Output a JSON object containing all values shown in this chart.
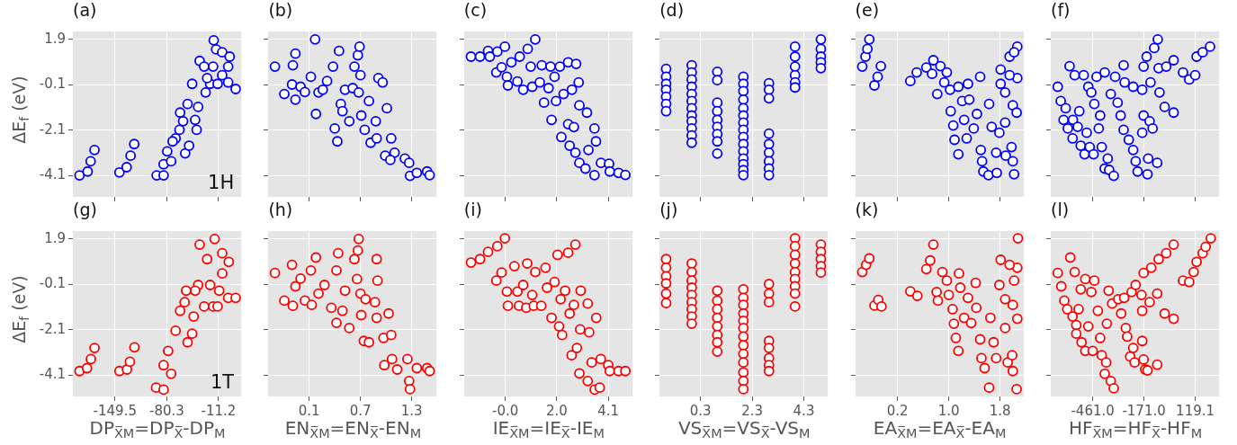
{
  "chart_data": [
    {
      "type": "scatter",
      "title": "(a)",
      "ylabel": "ΔE$_{f}$ (eV)",
      "annotations": [
        "1H"
      ],
      "xlim": [
        -205.7,
        19.2
      ],
      "xticks": [
        -149.5,
        -80.3,
        -11.2
      ],
      "ylim": [
        -5.05,
        2.25
      ],
      "yticks": [
        1.9,
        -0.1,
        -2.1,
        -4.1
      ],
      "grid": true,
      "marker": "circle",
      "tick_labels": "y",
      "series": [
        {
          "color": "#0000ff",
          "x": [
            -196.8,
            -186,
            -182,
            -176.8,
            -143.5,
            -133.9,
            -128.6,
            -123.8,
            -93.8,
            -84.5,
            -84.5,
            -79.7,
            -74.4,
            -68.5,
            -63.3,
            -55.7,
            -58.5,
            -50.5,
            -52.5,
            -42.4,
            -40.4,
            -46.4,
            -38.4,
            -36.4,
            -28.4,
            -30.4,
            -22.4,
            -18.4,
            -17.6,
            -14.4,
            -6.3,
            -6.3,
            1.7,
            3.7,
            1.7,
            11.7,
            -12.4,
            -26.4,
            -62.5,
            -72.5
          ],
          "values": [
            -4.1,
            -3.93,
            -3.48,
            -2.98,
            -3.97,
            -3.74,
            -3.23,
            -2.72,
            -4.1,
            -4.1,
            -3.61,
            -3.04,
            -3.48,
            -2.47,
            -2.09,
            -3.13,
            -1.71,
            -2.79,
            -0.95,
            -1.65,
            -2.09,
            -0.06,
            -1.08,
            0.95,
            -0.44,
            0.7,
            -0.06,
            0.7,
            1.86,
            1.46,
            1.33,
            0.32,
            0.7,
            1.14,
            0.0,
            -0.29,
            -0.06,
            0.19,
            -1.33,
            -2.6
          ]
        }
      ]
    },
    {
      "type": "scatter",
      "title": "(b)",
      "xlim": [
        -0.38,
        1.59
      ],
      "xticks": [
        0.1,
        0.7,
        1.3
      ],
      "ylim": [
        -5.05,
        2.25
      ],
      "yticks": [
        1.9,
        -0.1,
        -2.1,
        -4.1
      ],
      "grid": true,
      "marker": "circle",
      "tick_labels": false,
      "series": [
        {
          "color": "#0000ff",
          "x": [
            -0.3,
            -0.19,
            -0.1,
            -0.09,
            -0.06,
            -0.06,
            0.0,
            0.05,
            0.12,
            0.17,
            0.18,
            0.21,
            0.26,
            0.31,
            0.38,
            0.4,
            0.43,
            0.45,
            0.47,
            0.49,
            0.52,
            0.57,
            0.61,
            0.63,
            0.67,
            0.69,
            0.68,
            0.7,
            0.71,
            0.75,
            0.8,
            0.82,
            0.88,
            0.91,
            0.89,
            0.96,
            1.01,
            0.99,
            1.06,
            1.1,
            1.22,
            1.27,
            1.28,
            1.36,
            1.48,
            1.51,
            1.05
          ],
          "values": [
            0.7,
            -0.51,
            -0.09,
            0.76,
            1.27,
            -0.76,
            -0.19,
            -0.42,
            0.25,
            1.9,
            -1.39,
            -0.44,
            -0.32,
            0.06,
            0.7,
            -2.03,
            -2.6,
            1.39,
            -0.95,
            -1.27,
            -0.32,
            -1.71,
            -0.25,
            0.7,
            1.2,
            1.58,
            -0.44,
            0.32,
            -1.46,
            -2.09,
            -0.82,
            -2.66,
            -1.71,
            0.19,
            -2.47,
            0.0,
            -1.14,
            -3.23,
            -2.47,
            -3.1,
            -3.36,
            -3.55,
            -4.12,
            -3.99,
            -3.93,
            -4.09,
            -3.42
          ]
        }
      ]
    },
    {
      "type": "scatter",
      "title": "(c)",
      "xlim": [
        -1.69,
        5.02
      ],
      "xticks": [
        -0.05,
        2.0,
        4.05
      ],
      "ylim": [
        -5.05,
        2.25
      ],
      "yticks": [
        1.9,
        -0.1,
        -2.1,
        -4.1
      ],
      "grid": true,
      "marker": "circle",
      "tick_labels": false,
      "series": [
        {
          "color": "#0000ff",
          "x": [
            -1.42,
            -1.06,
            -0.74,
            -0.67,
            -0.37,
            -0.07,
            -0.41,
            -0.2,
            0.01,
            0.05,
            0.19,
            0.43,
            0.52,
            0.66,
            0.84,
            0.96,
            1.02,
            1.14,
            1.32,
            1.4,
            1.49,
            1.67,
            1.75,
            1.79,
            1.91,
            1.97,
            2.12,
            2.18,
            2.27,
            2.45,
            2.45,
            2.51,
            2.6,
            2.77,
            2.74,
            2.68,
            2.87,
            2.9,
            2.9,
            3.2,
            3.14,
            3.26,
            3.5,
            3.56,
            3.5,
            3.76,
            4.08,
            4.11,
            4.46,
            4.73
          ],
          "values": [
            1.14,
            1.14,
            1.39,
            1.14,
            1.36,
            1.58,
            0.44,
            0.67,
            0.25,
            -0.13,
            0.89,
            0.04,
            1.14,
            -0.32,
            1.48,
            0.7,
            -0.19,
            1.9,
            0.0,
            0.76,
            -0.89,
            -0.25,
            0.7,
            -1.65,
            0.25,
            -0.82,
            0.7,
            -2.41,
            -0.51,
            0.89,
            -1.84,
            -2.79,
            -0.32,
            0.82,
            -3.1,
            -1.97,
            0.0,
            -1.01,
            -3.55,
            -1.33,
            -3.8,
            -2.98,
            -2.03,
            -2.6,
            -4.09,
            -3.55,
            -3.59,
            -3.93,
            -3.99,
            -4.08
          ]
        }
      ]
    },
    {
      "type": "scatter",
      "title": "(d)",
      "xlim": [
        -1.29,
        5.23
      ],
      "xticks": [
        0.3,
        2.3,
        4.3
      ],
      "ylim": [
        -5.05,
        2.25
      ],
      "yticks": [
        1.9,
        -0.1,
        -2.1,
        -4.1
      ],
      "grid": true,
      "marker": "circle",
      "tick_labels": false,
      "series": [
        {
          "color": "#0000ff",
          "x": [
            -1.03,
            -1.03,
            -1.03,
            -1.03,
            -1.03,
            -1.03,
            -1.03,
            -0.04,
            -0.04,
            -0.04,
            -0.04,
            -0.04,
            -0.04,
            -0.04,
            -0.04,
            -0.04,
            -0.04,
            -0.04,
            -0.04,
            0.95,
            0.95,
            0.95,
            0.95,
            0.95,
            0.95,
            0.95,
            0.95,
            0.95,
            1.96,
            1.96,
            1.96,
            1.96,
            1.96,
            1.96,
            1.96,
            1.96,
            1.96,
            1.96,
            1.96,
            1.96,
            1.96,
            1.96,
            1.96,
            2.95,
            2.95,
            2.95,
            2.95,
            2.95,
            2.95,
            2.95,
            2.95,
            2.95,
            3.96,
            3.96,
            3.96,
            3.96,
            3.96,
            3.96,
            4.96,
            4.96,
            4.96,
            4.96,
            4.96
          ],
          "values": [
            0.6,
            0.25,
            -0.06,
            -0.32,
            -0.63,
            -0.95,
            -1.27,
            0.76,
            0.44,
            0.13,
            -0.19,
            -0.51,
            -0.82,
            -1.14,
            -1.46,
            -1.71,
            -2.03,
            -2.34,
            -2.66,
            0.47,
            0.1,
            -0.89,
            -1.27,
            -1.65,
            -1.96,
            -2.28,
            -2.6,
            -3.14,
            0.25,
            -0.06,
            -0.38,
            -0.76,
            -1.14,
            -1.46,
            -1.77,
            -2.09,
            -2.41,
            -2.72,
            -3.04,
            -3.36,
            -3.61,
            -3.87,
            -4.09,
            -0.04,
            -0.32,
            -0.7,
            -2.26,
            -2.72,
            -3.1,
            -3.48,
            -3.8,
            -4.09,
            1.58,
            1.14,
            0.7,
            0.32,
            0.0,
            -0.22,
            1.9,
            1.48,
            1.14,
            0.89,
            0.63
          ]
        }
      ]
    },
    {
      "type": "scatter",
      "title": "(e)",
      "xlim": [
        -0.455,
        2.174
      ],
      "xticks": [
        0.2,
        1.0,
        1.8
      ],
      "ylim": [
        -5.05,
        2.25
      ],
      "yticks": [
        1.9,
        -0.1,
        -2.1,
        -4.1
      ],
      "grid": true,
      "marker": "circle",
      "tick_labels": false,
      "series": [
        {
          "color": "#0000ff",
          "x": [
            -0.35,
            -0.3,
            -0.27,
            -0.24,
            -0.16,
            -0.11,
            -0.06,
            0.4,
            0.5,
            0.65,
            0.76,
            0.74,
            0.82,
            0.87,
            0.93,
            0.97,
            1.02,
            1.03,
            1.07,
            1.09,
            1.15,
            1.15,
            1.21,
            1.24,
            1.28,
            1.3,
            1.32,
            1.39,
            1.44,
            1.49,
            1.5,
            1.52,
            1.54,
            1.62,
            1.63,
            1.67,
            1.74,
            1.75,
            1.79,
            1.81,
            1.81,
            1.88,
            1.88,
            1.89,
            1.95,
            1.98,
            2.0,
            2.02,
            2.0,
            2.06,
            2.07,
            2.02,
            2.07,
            1.95
          ],
          "values": [
            0.7,
            1.14,
            1.48,
            1.9,
            -0.13,
            0.25,
            0.72,
            0.06,
            0.44,
            0.66,
            0.98,
            0.38,
            -0.51,
            0.72,
            0.0,
            0.44,
            -0.32,
            -1.27,
            -1.9,
            -2.53,
            -3.17,
            -0.19,
            -0.82,
            -1.65,
            -2.47,
            -0.06,
            -0.76,
            -2.03,
            -1.39,
            0.25,
            -2.98,
            -3.48,
            -3.93,
            -4.09,
            -0.95,
            -1.96,
            -3.1,
            -3.99,
            -2.22,
            0.57,
            -0.06,
            -0.44,
            -1.77,
            -3.23,
            1.14,
            -2.85,
            -3.48,
            -4.05,
            -1.01,
            -1.33,
            1.58,
            1.33,
            0.19,
            0.32
          ]
        }
      ]
    },
    {
      "type": "scatter",
      "title": "(f)",
      "xlim": [
        -698.4,
        254.7
      ],
      "xticks": [
        -461,
        -171,
        119.1
      ],
      "ylim": [
        -5.05,
        2.25
      ],
      "yticks": [
        1.9,
        -0.1,
        -2.1,
        -4.1
      ],
      "grid": true,
      "marker": "circle",
      "tick_labels": false,
      "series": [
        {
          "color": "#0000ff",
          "x": [
            -659,
            -642,
            -614,
            -626,
            -602,
            -592,
            -575,
            -573,
            -563,
            -546,
            -537,
            -529,
            -512,
            -507,
            -495,
            -486,
            -478,
            -456,
            -469,
            -452,
            -439,
            -427,
            -419,
            -410,
            -393,
            -393,
            -376,
            -368,
            -342,
            -359,
            -334,
            -320,
            -303,
            -286,
            -280,
            -286,
            -257,
            -232,
            -232,
            -218,
            -207,
            -181,
            -173,
            -173,
            -156,
            -181,
            -151,
            -147,
            -139,
            -134,
            -122,
            -113,
            -93,
            -96,
            -88,
            -83,
            -54,
            -45,
            -3,
            -3,
            50,
            85,
            119,
            127,
            161,
            203
          ],
          "values": [
            -0.19,
            -0.82,
            -1.14,
            -1.65,
            -2.03,
            0.72,
            -2.47,
            -1.65,
            0.32,
            -1.96,
            -1.27,
            -2.79,
            0.32,
            -3.17,
            -2.22,
            -0.19,
            -2.85,
            -3.17,
            -0.44,
            -0.95,
            0.25,
            -2.03,
            -1.46,
            -2.85,
            0.44,
            -3.8,
            -3.36,
            -3.86,
            -4.12,
            -0.51,
            0.25,
            -0.89,
            -1.46,
            0.76,
            0.0,
            -2.09,
            -2.53,
            -2.98,
            -0.19,
            -3.48,
            -3.93,
            -2.22,
            -1.46,
            0.7,
            1.14,
            -0.32,
            -4.05,
            -3.36,
            -1.71,
            0.0,
            -2.03,
            1.52,
            1.9,
            -3.55,
            0.63,
            -0.44,
            -1.08,
            0.7,
            -1.33,
            0.98,
            0.44,
            0.13,
            0.32,
            1.14,
            1.33,
            1.58
          ]
        }
      ]
    },
    {
      "type": "scatter",
      "title": "(g)",
      "ylabel": "ΔE$_{f}$ (eV)",
      "xlabel": "DP$_{X̅M}$=DP$_{X̅}$-DP$_{M}$",
      "annotations": [
        "1T"
      ],
      "xlim": [
        -205.7,
        19.2
      ],
      "xticks": [
        -149.5,
        -80.3,
        -11.2
      ],
      "ylim": [
        -5.05,
        2.25
      ],
      "yticks": [
        1.9,
        -0.1,
        -2.1,
        -4.1
      ],
      "grid": true,
      "marker": "circle",
      "series": [
        {
          "color": "#ff0000",
          "x": [
            -196.8,
            -186.8,
            -181.6,
            -176.8,
            -143.5,
            -133.5,
            -129.5,
            -123.5,
            -94.6,
            -84.5,
            -84.5,
            -78.5,
            -74.4,
            -68.5,
            -62.5,
            -52.5,
            -46.4,
            -56.5,
            -54.5,
            -44.4,
            -38.4,
            -36.4,
            -26.4,
            -30.4,
            -18.4,
            -16.4,
            -6.3,
            2.5,
            -6.3,
            -22.4,
            -10.3,
            1.7,
            11.7,
            -12.4,
            -42.4
          ],
          "values": [
            -3.93,
            -3.8,
            -3.4,
            -2.91,
            -3.93,
            -3.86,
            -3.52,
            -2.88,
            -4.66,
            -4.75,
            -3.67,
            -3.04,
            -4.05,
            -2.15,
            -1.27,
            -2.66,
            -2.28,
            -0.89,
            -0.38,
            -1.52,
            -0.13,
            1.65,
            1.01,
            -1.08,
            -1.08,
            1.9,
            1.27,
            0.89,
            0.38,
            -0.13,
            -0.38,
            -0.7,
            -0.7,
            -1.08,
            -0.38
          ]
        }
      ]
    },
    {
      "type": "scatter",
      "title": "(h)",
      "xlabel": "EN$_{X̅M}$=EN$_{X̅}$-EN$_{M}$",
      "xlim": [
        -0.38,
        1.59
      ],
      "xticks": [
        0.1,
        0.7,
        1.3
      ],
      "ylim": [
        -5.05,
        2.25
      ],
      "yticks": [
        1.9,
        -0.1,
        -2.1,
        -4.1
      ],
      "grid": true,
      "marker": "circle",
      "tick_labels": "x",
      "series": [
        {
          "color": "#ff0000",
          "x": [
            -0.3,
            -0.19,
            -0.1,
            -0.09,
            -0.06,
            0.0,
            0.05,
            0.12,
            0.13,
            0.18,
            0.21,
            0.28,
            0.36,
            0.42,
            0.44,
            0.42,
            0.49,
            0.52,
            0.57,
            0.63,
            0.68,
            0.67,
            0.66,
            0.7,
            0.71,
            0.74,
            0.76,
            0.8,
            0.87,
            0.89,
            0.9,
            0.89,
            0.97,
            1.03,
            0.98,
            1.06,
            1.07,
            1.13,
            1.25,
            1.27,
            1.28,
            1.36,
            1.48,
            1.51
          ],
          "values": [
            0.4,
            -0.82,
            0.76,
            -1.05,
            -0.19,
            0.15,
            -0.82,
            0.51,
            -1.01,
            1.08,
            -0.51,
            -0.13,
            -1.14,
            -1.8,
            1.27,
            0.51,
            -1.27,
            -0.38,
            -2.03,
            1.01,
            1.9,
            1.39,
            0.13,
            -0.51,
            -1.46,
            -2.6,
            -0.76,
            -2.66,
            -0.89,
            1.01,
            0.06,
            -1.58,
            -2.47,
            -1.39,
            -3.67,
            -2.34,
            -3.4,
            -3.86,
            -3.4,
            -4.37,
            -4.73,
            -3.8,
            -3.8,
            -3.93
          ]
        }
      ]
    },
    {
      "type": "scatter",
      "title": "(i)",
      "xlabel": "IE$_{X̅M}$=IE$_{X̅}$-IE$_{M}$",
      "xlim": [
        -1.69,
        5.02
      ],
      "xticks": [
        {
          "value": -0.05,
          "label": "-0.0"
        },
        {
          "value": 2.0,
          "label": "2.0"
        },
        {
          "value": 4.05,
          "label": "4.1"
        }
      ],
      "ylim": [
        -5.05,
        2.25
      ],
      "yticks": [
        1.9,
        -0.1,
        -2.1,
        -4.1
      ],
      "grid": true,
      "marker": "circle",
      "tick_labels": "x",
      "series": [
        {
          "color": "#ff0000",
          "x": [
            -1.42,
            -1.06,
            -0.74,
            -0.37,
            -0.07,
            -0.41,
            -0.2,
            0.01,
            0.05,
            0.31,
            0.43,
            0.49,
            0.66,
            0.78,
            0.82,
            1.02,
            1.08,
            1.14,
            1.38,
            1.55,
            1.61,
            1.79,
            1.91,
            2.03,
            2.09,
            2.15,
            2.21,
            2.33,
            2.45,
            2.51,
            2.59,
            2.68,
            2.74,
            2.8,
            2.9,
            2.95,
            2.93,
            3.23,
            3.23,
            3.29,
            3.39,
            3.51,
            3.57,
            3.71,
            3.75,
            4.05,
            4.11,
            4.46,
            4.73
          ],
          "values": [
            0.86,
            1.01,
            1.33,
            1.58,
            1.93,
            0.06,
            0.42,
            -0.42,
            -1.05,
            0.7,
            -0.42,
            -1.05,
            -0.13,
            -1.14,
            0.82,
            -0.57,
            -1.05,
            0.44,
            -1.05,
            0.63,
            -0.25,
            -1.58,
            0.0,
            1.2,
            -1.96,
            -0.76,
            -2.34,
            -0.38,
            1.29,
            -1.39,
            -3.23,
            -1.01,
            1.65,
            -2.91,
            -4.03,
            -0.38,
            -2.09,
            -0.95,
            -4.37,
            -2.22,
            -3.55,
            -4.75,
            -1.58,
            -4.66,
            -3.4,
            -3.67,
            -3.93,
            -3.93,
            -3.93
          ]
        }
      ]
    },
    {
      "type": "scatter",
      "title": "(j)",
      "xlabel": "VS$_{X̅M}$=VS$_{X̅}$-VS$_{M}$",
      "xlim": [
        -1.29,
        5.23
      ],
      "xticks": [
        0.3,
        2.3,
        4.3
      ],
      "ylim": [
        -5.05,
        2.25
      ],
      "yticks": [
        1.9,
        -0.1,
        -2.1,
        -4.1
      ],
      "grid": true,
      "marker": "circle",
      "tick_labels": "x",
      "series": [
        {
          "color": "#ff0000",
          "x": [
            -1.03,
            -1.03,
            -1.03,
            -1.03,
            -1.03,
            -1.03,
            -0.04,
            -0.04,
            -0.04,
            -0.04,
            -0.04,
            -0.04,
            -0.04,
            -0.04,
            -0.04,
            0.95,
            0.95,
            0.95,
            0.95,
            0.95,
            0.95,
            0.95,
            0.95,
            1.96,
            1.96,
            1.96,
            1.96,
            1.96,
            1.96,
            1.96,
            1.96,
            1.96,
            1.96,
            1.96,
            1.96,
            1.96,
            2.95,
            2.95,
            2.95,
            2.95,
            2.95,
            2.95,
            2.95,
            2.95,
            3.96,
            3.96,
            3.96,
            3.96,
            3.96,
            3.96,
            3.96,
            3.96,
            3.96,
            4.96,
            4.96,
            4.96,
            4.96,
            4.96
          ],
          "values": [
            1.01,
            0.63,
            0.25,
            -0.06,
            -0.51,
            -0.93,
            0.82,
            0.44,
            0.06,
            -0.25,
            -0.57,
            -0.89,
            -1.2,
            -1.52,
            -1.84,
            -0.38,
            -0.82,
            -1.2,
            -1.58,
            -1.96,
            -2.34,
            -2.66,
            -3.07,
            -0.32,
            -0.7,
            -1.01,
            -1.39,
            -1.71,
            -2.03,
            -2.41,
            -2.79,
            -3.17,
            -3.55,
            -3.99,
            -4.37,
            -4.73,
            -0.09,
            -0.51,
            -0.89,
            -2.6,
            -2.91,
            -3.36,
            -3.67,
            -3.93,
            1.93,
            1.58,
            1.2,
            0.82,
            0.44,
            0.13,
            -0.19,
            -0.51,
            -1.08,
            1.65,
            1.33,
            1.01,
            0.7,
            0.42
          ]
        }
      ]
    },
    {
      "type": "scatter",
      "title": "(k)",
      "xlabel": "EA$_{X̅M}$=EA$_{X̅}$-EA$_{M}$",
      "xlim": [
        -0.455,
        2.174
      ],
      "xticks": [
        0.2,
        {
          "value": 1.0,
          "label": "1.0"
        },
        1.8
      ],
      "ylim": [
        -5.05,
        2.25
      ],
      "yticks": [
        1.9,
        -0.1,
        -2.1,
        -4.1
      ],
      "grid": true,
      "marker": "circle",
      "tick_labels": "x",
      "series": [
        {
          "color": "#ff0000",
          "x": [
            -0.35,
            -0.29,
            -0.24,
            -0.16,
            -0.1,
            -0.05,
            0.4,
            0.51,
            0.65,
            0.71,
            0.76,
            0.81,
            0.83,
            0.9,
            0.97,
            1.0,
            1.06,
            1.08,
            1.11,
            1.15,
            1.16,
            1.18,
            1.24,
            1.3,
            1.35,
            1.42,
            1.43,
            1.49,
            1.51,
            1.56,
            1.63,
            1.65,
            1.7,
            1.74,
            1.79,
            1.81,
            1.88,
            1.88,
            1.92,
            1.99,
            2.0,
            2.0,
            2.06,
            2.07,
            2.02,
            2.07,
            2.08,
            1.95
          ],
          "values": [
            0.44,
            0.76,
            1.04,
            -1.04,
            -0.79,
            -1.08,
            -0.41,
            -0.61,
            0.57,
            0.95,
            1.65,
            -0.44,
            -0.82,
            0.44,
            0.06,
            -0.57,
            -1.2,
            -1.84,
            -2.47,
            -3.04,
            0.38,
            -0.25,
            -1.58,
            -0.7,
            -1.81,
            -0.04,
            -1.14,
            -2.53,
            -3.36,
            -3.8,
            -4.66,
            -1.58,
            -2.66,
            -3.36,
            -0.13,
            0.98,
            -0.76,
            -2.03,
            -3.55,
            -3.23,
            -3.93,
            -1.01,
            -4.73,
            -1.62,
            0.06,
            0.63,
            1.93,
            0.76
          ]
        }
      ]
    },
    {
      "type": "scatter",
      "title": "(l)",
      "xlabel": "HF$_{X̅M}$=HF$_{X̅}$-HF$_{M}$",
      "xlim": [
        -698.4,
        254.7
      ],
      "xticks": [
        {
          "value": -461,
          "label": "-461.0"
        },
        {
          "value": -171,
          "label": "-171.0"
        },
        119.1
      ],
      "ylim": [
        -5.05,
        2.25
      ],
      "yticks": [
        1.9,
        -0.1,
        -2.1,
        -4.1
      ],
      "grid": true,
      "marker": "circle",
      "tick_labels": "x",
      "series": [
        {
          "color": "#ff0000",
          "x": [
            -659,
            -639,
            -622,
            -605,
            -588,
            -575,
            -563,
            -554,
            -541,
            -554,
            -524,
            -529,
            -503,
            -503,
            -486,
            -461,
            -469,
            -452,
            -432,
            -419,
            -410,
            -385,
            -393,
            -381,
            -371,
            -359,
            -342,
            -351,
            -317,
            -300,
            -283,
            -274,
            -266,
            -249,
            -232,
            -224,
            -241,
            -218,
            -181,
            -181,
            -185,
            -173,
            -164,
            -173,
            -151,
            -139,
            -130,
            -96,
            -96,
            -88,
            -54,
            -45,
            -3,
            -3,
            50,
            85,
            110,
            127,
            161,
            178,
            207
          ],
          "values": [
            0.4,
            -0.19,
            -0.82,
            -1.2,
            1.08,
            -1.52,
            0.44,
            -1.9,
            -1.2,
            -2.28,
            -2.66,
            -0.32,
            -3.04,
            0.13,
            -1.96,
            -3.04,
            -0.44,
            0.06,
            -1.27,
            -2.47,
            -3.23,
            -3.55,
            -4.05,
            -1.84,
            -0.38,
            -4.37,
            -4.69,
            -0.95,
            -0.76,
            -1.39,
            -0.7,
            -2.03,
            -2.41,
            -3.29,
            -2.91,
            -3.55,
            -0.44,
            -0.13,
            -2.6,
            -1.27,
            -0.57,
            -3.42,
            -3.86,
            0.4,
            -3.9,
            -0.89,
            0.63,
            -3.65,
            -0.51,
            1.01,
            -1.39,
            1.27,
            -1.62,
            1.65,
            0.06,
            0.0,
            0.44,
            0.89,
            1.27,
            1.55,
            1.93
          ]
        }
      ]
    }
  ]
}
